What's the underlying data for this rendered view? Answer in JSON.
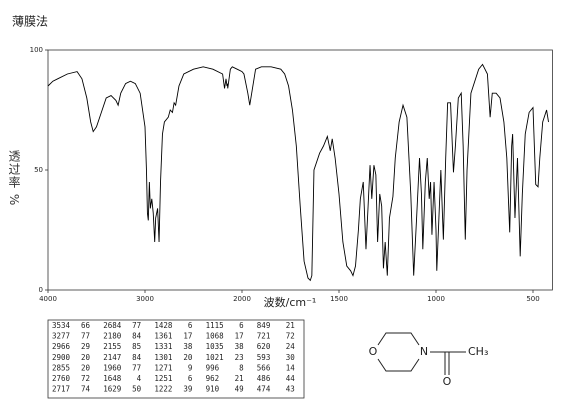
{
  "chart_data": {
    "type": "line",
    "title": "薄膜法",
    "x_label": "波数/cm⁻¹",
    "y_label": "透过率 %",
    "color": "#000000",
    "xlim": [
      4000,
      400
    ],
    "xticks": [
      4000,
      3000,
      2000,
      1500,
      1000,
      500
    ],
    "ylim": [
      0,
      100
    ],
    "yticks": [
      0,
      50,
      100
    ],
    "x": [
      4000,
      3950,
      3900,
      3800,
      3700,
      3650,
      3600,
      3560,
      3534,
      3500,
      3450,
      3400,
      3350,
      3300,
      3277,
      3250,
      3200,
      3150,
      3100,
      3050,
      3000,
      2985,
      2975,
      2966,
      2955,
      2945,
      2930,
      2915,
      2900,
      2890,
      2870,
      2855,
      2840,
      2820,
      2800,
      2760,
      2740,
      2717,
      2700,
      2684,
      2650,
      2600,
      2500,
      2400,
      2300,
      2200,
      2180,
      2165,
      2155,
      2150,
      2147,
      2120,
      2100,
      2050,
      2000,
      1990,
      1970,
      1960,
      1950,
      1930,
      1900,
      1850,
      1800,
      1780,
      1760,
      1740,
      1720,
      1700,
      1680,
      1660,
      1648,
      1640,
      1629,
      1600,
      1580,
      1560,
      1545,
      1535,
      1520,
      1500,
      1480,
      1460,
      1440,
      1428,
      1415,
      1400,
      1390,
      1375,
      1361,
      1350,
      1340,
      1331,
      1320,
      1310,
      1301,
      1290,
      1280,
      1271,
      1262,
      1251,
      1240,
      1222,
      1210,
      1190,
      1170,
      1150,
      1130,
      1115,
      1100,
      1085,
      1075,
      1068,
      1055,
      1045,
      1035,
      1028,
      1021,
      1010,
      1000,
      996,
      985,
      975,
      962,
      950,
      940,
      925,
      910,
      900,
      885,
      870,
      860,
      849,
      840,
      820,
      780,
      760,
      735,
      721,
      710,
      690,
      670,
      650,
      635,
      620,
      610,
      605,
      593,
      580,
      566,
      555,
      540,
      520,
      500,
      486,
      474,
      465,
      450,
      430,
      420
    ],
    "values": [
      85,
      87,
      88,
      90,
      91,
      88,
      80,
      70,
      66,
      68,
      74,
      80,
      81,
      79,
      77,
      82,
      86,
      87,
      86,
      82,
      68,
      50,
      32,
      29,
      45,
      34,
      38,
      32,
      20,
      30,
      34,
      20,
      45,
      65,
      70,
      72,
      75,
      74,
      78,
      77,
      85,
      90,
      92,
      93,
      92,
      90,
      84,
      88,
      85,
      86,
      84,
      92,
      93,
      92,
      91,
      90,
      82,
      77,
      82,
      92,
      93,
      93,
      92,
      90,
      85,
      75,
      60,
      35,
      12,
      5,
      4,
      6,
      50,
      57,
      60,
      64,
      58,
      63,
      55,
      40,
      20,
      10,
      8,
      6,
      10,
      25,
      38,
      45,
      17,
      35,
      52,
      38,
      52,
      48,
      20,
      40,
      35,
      9,
      20,
      6,
      30,
      39,
      55,
      70,
      77,
      72,
      40,
      6,
      30,
      55,
      40,
      17,
      45,
      55,
      38,
      45,
      23,
      45,
      25,
      8,
      30,
      50,
      21,
      55,
      78,
      78,
      49,
      60,
      80,
      82,
      60,
      21,
      50,
      82,
      92,
      94,
      90,
      72,
      82,
      82,
      80,
      70,
      55,
      24,
      60,
      65,
      30,
      55,
      14,
      40,
      65,
      74,
      76,
      44,
      43,
      55,
      70,
      75,
      70
    ]
  },
  "peak_table": {
    "rows": [
      [
        3534,
        66
      ],
      [
        3277,
        77
      ],
      [
        2966,
        29
      ],
      [
        2900,
        20
      ],
      [
        2855,
        20
      ],
      [
        2760,
        72
      ],
      [
        2717,
        74
      ],
      [
        2684,
        77
      ],
      [
        2180,
        84
      ],
      [
        2155,
        85
      ],
      [
        2147,
        84
      ],
      [
        1960,
        77
      ],
      [
        1648,
        4
      ],
      [
        1629,
        50
      ],
      [
        1428,
        6
      ],
      [
        1361,
        17
      ],
      [
        1331,
        38
      ],
      [
        1301,
        20
      ],
      [
        1271,
        9
      ],
      [
        1251,
        6
      ],
      [
        1222,
        39
      ],
      [
        1115,
        6
      ],
      [
        1068,
        17
      ],
      [
        1035,
        38
      ],
      [
        1021,
        23
      ],
      [
        996,
        8
      ],
      [
        962,
        21
      ],
      [
        910,
        49
      ],
      [
        849,
        21
      ],
      [
        721,
        72
      ],
      [
        620,
        24
      ],
      [
        593,
        30
      ],
      [
        566,
        14
      ],
      [
        486,
        44
      ],
      [
        474,
        43
      ]
    ]
  },
  "structure": {
    "atoms": [
      "O",
      "N",
      "O",
      "CH₃"
    ]
  }
}
